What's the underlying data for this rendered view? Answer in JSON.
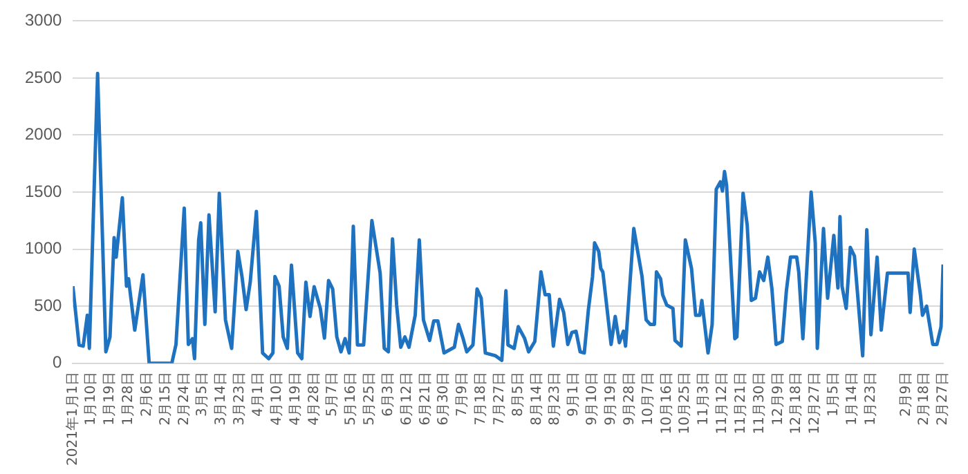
{
  "chart_data": {
    "type": "line",
    "color": "#1f72c0",
    "marker": "none",
    "line_style": "solid",
    "grid": "y",
    "legend": false,
    "xlim": [
      "2021-01-01",
      "2022-02-27"
    ],
    "ylim": [
      0,
      3000
    ],
    "yticks": [
      0,
      500,
      1000,
      1500,
      2000,
      2500,
      3000
    ],
    "xticks": [
      {
        "value": "2021-01-01",
        "label": "2021年1月1日"
      },
      {
        "value": "2021-01-10",
        "label": "1月10日"
      },
      {
        "value": "2021-01-19",
        "label": "1月19日"
      },
      {
        "value": "2021-01-28",
        "label": "1月28日"
      },
      {
        "value": "2021-02-06",
        "label": "2月6日"
      },
      {
        "value": "2021-02-15",
        "label": "2月15日"
      },
      {
        "value": "2021-02-24",
        "label": "2月24日"
      },
      {
        "value": "2021-03-05",
        "label": "3月5日"
      },
      {
        "value": "2021-03-14",
        "label": "3月14日"
      },
      {
        "value": "2021-03-23",
        "label": "3月23日"
      },
      {
        "value": "2021-04-01",
        "label": "4月1日"
      },
      {
        "value": "2021-04-10",
        "label": "4月10日"
      },
      {
        "value": "2021-04-19",
        "label": "4月19日"
      },
      {
        "value": "2021-04-28",
        "label": "4月28日"
      },
      {
        "value": "2021-05-07",
        "label": "5月7日"
      },
      {
        "value": "2021-05-16",
        "label": "5月16日"
      },
      {
        "value": "2021-05-25",
        "label": "5月25日"
      },
      {
        "value": "2021-06-03",
        "label": "6月3日"
      },
      {
        "value": "2021-06-12",
        "label": "6月12日"
      },
      {
        "value": "2021-06-21",
        "label": "6月21日"
      },
      {
        "value": "2021-06-30",
        "label": "6月30日"
      },
      {
        "value": "2021-07-09",
        "label": "7月9日"
      },
      {
        "value": "2021-07-18",
        "label": "7月18日"
      },
      {
        "value": "2021-07-27",
        "label": "7月27日"
      },
      {
        "value": "2021-08-05",
        "label": "8月5日"
      },
      {
        "value": "2021-08-14",
        "label": "8月14日"
      },
      {
        "value": "2021-08-23",
        "label": "8月23日"
      },
      {
        "value": "2021-09-01",
        "label": "9月1日"
      },
      {
        "value": "2021-09-10",
        "label": "9月10日"
      },
      {
        "value": "2021-09-19",
        "label": "9月19日"
      },
      {
        "value": "2021-09-28",
        "label": "9月28日"
      },
      {
        "value": "2021-10-07",
        "label": "10月7日"
      },
      {
        "value": "2021-10-16",
        "label": "10月16日"
      },
      {
        "value": "2021-10-25",
        "label": "10月25日"
      },
      {
        "value": "2021-11-03",
        "label": "11月3日"
      },
      {
        "value": "2021-11-12",
        "label": "11月12日"
      },
      {
        "value": "2021-11-21",
        "label": "11月21日"
      },
      {
        "value": "2021-11-30",
        "label": "11月30日"
      },
      {
        "value": "2021-12-09",
        "label": "12月9日"
      },
      {
        "value": "2021-12-18",
        "label": "12月18日"
      },
      {
        "value": "2021-12-27",
        "label": "12月27日"
      },
      {
        "value": "2022-01-05",
        "label": "1月5日"
      },
      {
        "value": "2022-01-14",
        "label": "1月14日"
      },
      {
        "value": "2022-01-23",
        "label": "1月23日"
      },
      {
        "value": "2022-02-09",
        "label": "2月9日"
      },
      {
        "value": "2022-02-18",
        "label": "2月18日"
      },
      {
        "value": "2022-02-27",
        "label": "2月27日"
      }
    ],
    "x": [
      "2021-01-01",
      "2021-01-04",
      "2021-01-06",
      "2021-01-08",
      "2021-01-09",
      "2021-01-13",
      "2021-01-17",
      "2021-01-19",
      "2021-01-21",
      "2021-01-22",
      "2021-01-25",
      "2021-01-27",
      "2021-01-28",
      "2021-01-31",
      "2021-02-04",
      "2021-02-07",
      "2021-02-18",
      "2021-02-20",
      "2021-02-24",
      "2021-02-26",
      "2021-02-28",
      "2021-03-01",
      "2021-03-03",
      "2021-03-04",
      "2021-03-06",
      "2021-03-08",
      "2021-03-11",
      "2021-03-13",
      "2021-03-16",
      "2021-03-19",
      "2021-03-22",
      "2021-03-24",
      "2021-03-26",
      "2021-03-28",
      "2021-03-31",
      "2021-04-03",
      "2021-04-06",
      "2021-04-08",
      "2021-04-09",
      "2021-04-11",
      "2021-04-13",
      "2021-04-15",
      "2021-04-17",
      "2021-04-20",
      "2021-04-22",
      "2021-04-24",
      "2021-04-26",
      "2021-04-28",
      "2021-05-01",
      "2021-05-03",
      "2021-05-05",
      "2021-05-07",
      "2021-05-09",
      "2021-05-11",
      "2021-05-13",
      "2021-05-15",
      "2021-05-17",
      "2021-05-19",
      "2021-05-22",
      "2021-05-26",
      "2021-05-30",
      "2021-06-01",
      "2021-06-03",
      "2021-06-05",
      "2021-06-07",
      "2021-06-09",
      "2021-06-11",
      "2021-06-13",
      "2021-06-16",
      "2021-06-18",
      "2021-06-20",
      "2021-06-23",
      "2021-06-25",
      "2021-06-27",
      "2021-06-30",
      "2021-07-05",
      "2021-07-07",
      "2021-07-09",
      "2021-07-11",
      "2021-07-14",
      "2021-07-16",
      "2021-07-18",
      "2021-07-20",
      "2021-07-25",
      "2021-07-28",
      "2021-07-30",
      "2021-07-31",
      "2021-08-03",
      "2021-08-05",
      "2021-08-08",
      "2021-08-10",
      "2021-08-13",
      "2021-08-16",
      "2021-08-18",
      "2021-08-20",
      "2021-08-22",
      "2021-08-25",
      "2021-08-27",
      "2021-08-29",
      "2021-08-31",
      "2021-09-02",
      "2021-09-04",
      "2021-09-06",
      "2021-09-08",
      "2021-09-10",
      "2021-09-11",
      "2021-09-13",
      "2021-09-14",
      "2021-09-15",
      "2021-09-19",
      "2021-09-21",
      "2021-09-23",
      "2021-09-25",
      "2021-09-26",
      "2021-09-30",
      "2021-10-04",
      "2021-10-06",
      "2021-10-08",
      "2021-10-10",
      "2021-10-11",
      "2021-10-13",
      "2021-10-14",
      "2021-10-16",
      "2021-10-19",
      "2021-10-20",
      "2021-10-23",
      "2021-10-25",
      "2021-10-28",
      "2021-10-30",
      "2021-11-01",
      "2021-11-02",
      "2021-11-05",
      "2021-11-07",
      "2021-11-09",
      "2021-11-11",
      "2021-11-12",
      "2021-11-13",
      "2021-11-14",
      "2021-11-16",
      "2021-11-18",
      "2021-11-19",
      "2021-11-22",
      "2021-11-24",
      "2021-11-26",
      "2021-11-28",
      "2021-11-30",
      "2021-12-02",
      "2021-12-04",
      "2021-12-06",
      "2021-12-08",
      "2021-12-11",
      "2021-12-13",
      "2021-12-15",
      "2021-12-18",
      "2021-12-19",
      "2021-12-21",
      "2021-12-25",
      "2021-12-27",
      "2021-12-28",
      "2021-12-31",
      "2022-01-02",
      "2022-01-05",
      "2022-01-07",
      "2022-01-08",
      "2022-01-09",
      "2022-01-11",
      "2022-01-13",
      "2022-01-15",
      "2022-01-19",
      "2022-01-21",
      "2022-01-23",
      "2022-01-26",
      "2022-01-28",
      "2022-01-31",
      "2022-02-10",
      "2022-02-11",
      "2022-02-13",
      "2022-02-16",
      "2022-02-17",
      "2022-02-19",
      "2022-02-22",
      "2022-02-24",
      "2022-02-26",
      "2022-02-27"
    ],
    "values": [
      675,
      160,
      150,
      420,
      130,
      2540,
      100,
      230,
      1100,
      930,
      1450,
      675,
      740,
      290,
      775,
      0,
      0,
      165,
      1360,
      165,
      215,
      40,
      1080,
      1230,
      340,
      1300,
      450,
      1490,
      380,
      130,
      980,
      760,
      470,
      710,
      1330,
      90,
      40,
      90,
      760,
      675,
      230,
      130,
      860,
      90,
      40,
      710,
      410,
      670,
      480,
      220,
      725,
      650,
      230,
      100,
      215,
      90,
      1200,
      160,
      160,
      1250,
      790,
      130,
      100,
      1090,
      510,
      140,
      230,
      140,
      420,
      1080,
      380,
      200,
      370,
      370,
      90,
      140,
      340,
      230,
      100,
      160,
      650,
      570,
      90,
      65,
      25,
      635,
      160,
      130,
      320,
      220,
      100,
      190,
      800,
      600,
      600,
      150,
      560,
      445,
      165,
      270,
      280,
      100,
      90,
      470,
      760,
      1055,
      980,
      830,
      800,
      165,
      410,
      180,
      280,
      150,
      1180,
      760,
      380,
      340,
      340,
      800,
      740,
      600,
      510,
      480,
      200,
      150,
      1080,
      830,
      420,
      420,
      550,
      90,
      340,
      1525,
      1590,
      1510,
      1680,
      1560,
      890,
      215,
      230,
      1490,
      1210,
      550,
      570,
      800,
      725,
      930,
      650,
      165,
      190,
      635,
      930,
      930,
      800,
      215,
      1500,
      1055,
      130,
      1180,
      570,
      1120,
      660,
      1285,
      675,
      480,
      1015,
      940,
      65,
      1170,
      250,
      930,
      290,
      790,
      790,
      445,
      1000,
      600,
      420,
      500,
      165,
      165,
      320,
      865
    ]
  }
}
